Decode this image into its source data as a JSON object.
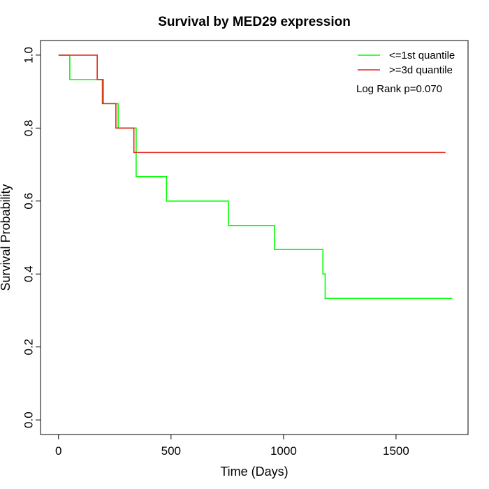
{
  "chart_data": {
    "type": "line",
    "title": "Survival by MED29 expression",
    "xlabel": "Time (Days)",
    "ylabel": "Survival Probability",
    "xlim": [
      -80,
      1820
    ],
    "ylim": [
      -0.04,
      1.04
    ],
    "x_ticks": [
      0,
      500,
      1000,
      1500
    ],
    "y_ticks": [
      0.0,
      0.2,
      0.4,
      0.6,
      0.8,
      1.0
    ],
    "x_tick_labels": [
      "0",
      "500",
      "1000",
      "1500"
    ],
    "y_tick_labels": [
      "0.0",
      "0.2",
      "0.4",
      "0.6",
      "0.8",
      "1.0"
    ],
    "grid": false,
    "legend_position": "top-right",
    "annotation": "Log Rank p=0.070",
    "series": [
      {
        "name": "<=1st quantile",
        "color": "#00ff00",
        "step": true,
        "x": [
          0,
          50,
          200,
          265,
          345,
          480,
          755,
          960,
          1175,
          1185,
          1750
        ],
        "y": [
          1.0,
          0.933,
          0.867,
          0.8,
          0.667,
          0.6,
          0.533,
          0.467,
          0.4,
          0.333,
          0.333
        ]
      },
      {
        "name": ">=3d quantile",
        "color": "#e8251c",
        "step": true,
        "x": [
          0,
          172,
          195,
          255,
          335,
          1720
        ],
        "y": [
          1.0,
          0.933,
          0.867,
          0.8,
          0.733,
          0.733
        ]
      }
    ]
  }
}
